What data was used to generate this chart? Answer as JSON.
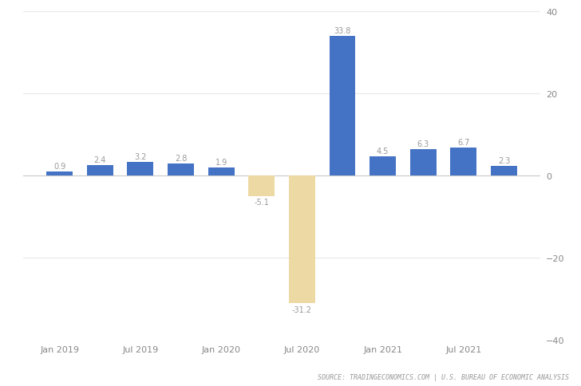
{
  "x_positions": [
    0,
    1,
    2,
    3,
    4,
    5,
    6,
    7,
    8,
    9,
    10,
    11
  ],
  "values": [
    0.9,
    2.4,
    3.2,
    2.8,
    1.9,
    -5.1,
    -31.2,
    33.8,
    4.5,
    6.3,
    6.7,
    2.3
  ],
  "bar_colors": [
    "#4472C4",
    "#4472C4",
    "#4472C4",
    "#4472C4",
    "#4472C4",
    "#EDD9A3",
    "#EDD9A3",
    "#4472C4",
    "#4472C4",
    "#4472C4",
    "#4472C4",
    "#4472C4"
  ],
  "background_color": "#FFFFFF",
  "grid_color": "#E8E8E8",
  "zero_line_color": "#CCCCCC",
  "ylim": [
    -40,
    40
  ],
  "yticks": [
    -40,
    -20,
    0,
    20,
    40
  ],
  "xtick_labels": [
    "Jan 2019",
    "Jul 2019",
    "Jan 2020",
    "Jul 2020",
    "Jan 2021",
    "Jul 2021"
  ],
  "xtick_positions": [
    0,
    2,
    4,
    6,
    8,
    10
  ],
  "source_text": "SOURCE: TRADINGECONOMICS.COM | U.S. BUREAU OF ECONOMIC ANALYSIS",
  "bar_width": 0.65,
  "label_fontsize": 7.0,
  "tick_fontsize": 8.0,
  "source_fontsize": 6.0,
  "label_color": "#999999",
  "tick_color": "#888888"
}
